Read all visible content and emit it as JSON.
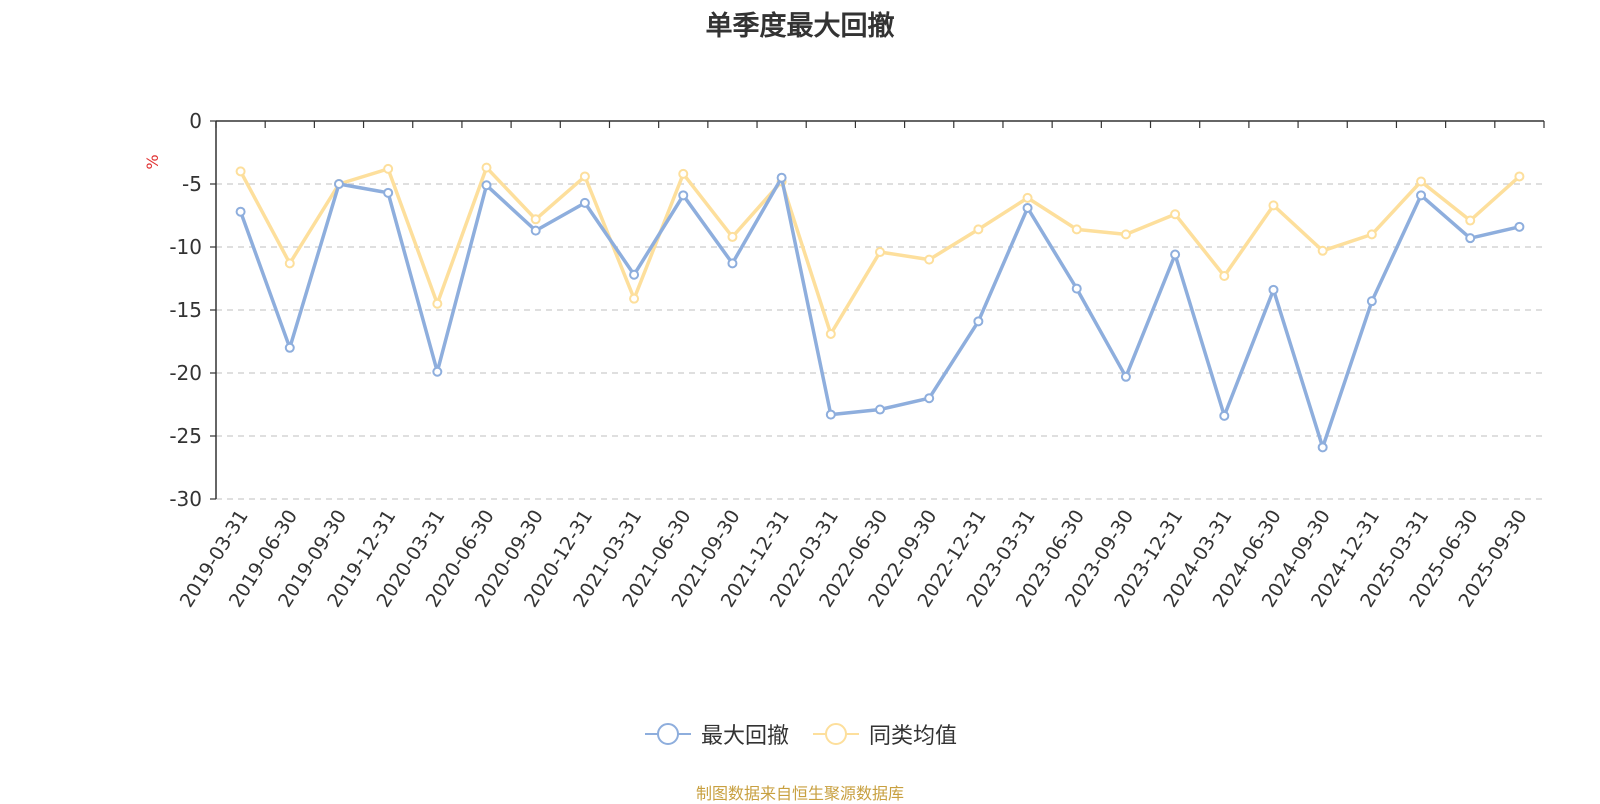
{
  "title": "单季度最大回撤",
  "source_note": "制图数据来自恒生聚源数据库",
  "colors": {
    "series1": "#8eaedd",
    "series2": "#fddf9c",
    "ylabel": "#e03030",
    "source": "#c8a040",
    "grid": "#cccccc",
    "axis": "#333333"
  },
  "chart_data": {
    "type": "line",
    "title": "单季度最大回撤",
    "ylabel": "%",
    "ylim": [
      -30,
      0
    ],
    "yticks": [
      0,
      -5,
      -10,
      -15,
      -20,
      -25,
      -30
    ],
    "grid": true,
    "legend_position": "bottom",
    "categories": [
      "2019-03-31",
      "2019-06-30",
      "2019-09-30",
      "2019-12-31",
      "2020-03-31",
      "2020-06-30",
      "2020-09-30",
      "2020-12-31",
      "2021-03-31",
      "2021-06-30",
      "2021-09-30",
      "2021-12-31",
      "2022-03-31",
      "2022-06-30",
      "2022-09-30",
      "2022-12-31",
      "2023-03-31",
      "2023-06-30",
      "2023-09-30",
      "2023-12-31",
      "2024-03-31",
      "2024-06-30",
      "2024-09-30",
      "2024-12-31",
      "2025-03-31",
      "2025-06-30",
      "2025-09-30"
    ],
    "series": [
      {
        "name": "最大回撤",
        "values": [
          -7.2,
          -18.0,
          -5.0,
          -5.7,
          -19.9,
          -5.1,
          -8.7,
          -6.5,
          -12.2,
          -5.9,
          -11.3,
          -4.5,
          -23.3,
          -22.9,
          -22.0,
          -15.9,
          -6.9,
          -13.3,
          -20.3,
          -10.6,
          -23.4,
          -13.4,
          -25.9,
          -14.3,
          -5.9,
          -9.3,
          -8.4
        ]
      },
      {
        "name": "同类均值",
        "values": [
          -4.0,
          -11.3,
          -5.0,
          -3.8,
          -14.5,
          -3.7,
          -7.8,
          -4.4,
          -14.1,
          -4.2,
          -9.2,
          -4.8,
          -16.9,
          -10.4,
          -11.0,
          -8.6,
          -6.1,
          -8.6,
          -9.0,
          -7.4,
          -12.3,
          -6.7,
          -10.3,
          -9.0,
          -4.8,
          -7.9,
          -4.4
        ]
      }
    ]
  }
}
